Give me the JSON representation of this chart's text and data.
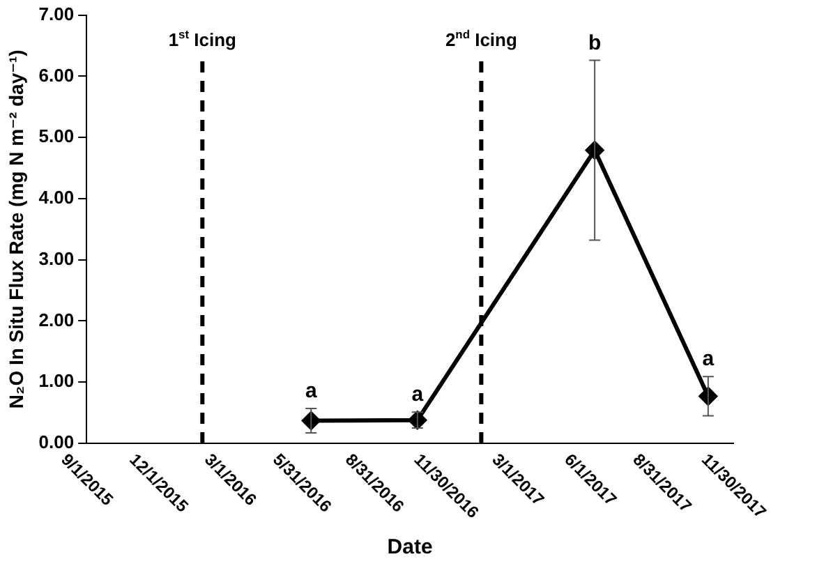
{
  "chart_data": {
    "type": "line",
    "xlabel": "Date",
    "ylabel": "N₂O In Situ Flux Rate (mg N m⁻² day⁻¹)",
    "x": [
      "2016-06-12",
      "2016-10-25",
      "2017-06-07",
      "2017-10-29"
    ],
    "series": [
      {
        "color": "#000000",
        "values": [
          0.37,
          0.38,
          4.79,
          0.77
        ],
        "errors": [
          0.2,
          0.13,
          1.47,
          0.32
        ]
      }
    ],
    "xlim": [
      "2015-09-01",
      "2017-11-30"
    ],
    "xticks": [
      {
        "value": "2015-09-01",
        "label": "9/1/2015"
      },
      {
        "value": "2015-12-01",
        "label": "12/1/2015"
      },
      {
        "value": "2016-03-01",
        "label": "3/1/2016"
      },
      {
        "value": "2016-05-31",
        "label": "5/31/2016"
      },
      {
        "value": "2016-08-31",
        "label": "8/31/2016"
      },
      {
        "value": "2016-11-30",
        "label": "11/30/2016"
      },
      {
        "value": "2017-03-01",
        "label": "3/1/2017"
      },
      {
        "value": "2017-06-01",
        "label": "6/1/2017"
      },
      {
        "value": "2017-08-31",
        "label": "8/31/2017"
      },
      {
        "value": "2017-11-30",
        "label": "11/30/2017"
      }
    ],
    "ylim": [
      0,
      7
    ],
    "yticks": [
      {
        "value": 0,
        "label": "0.00"
      },
      {
        "value": 1,
        "label": "1.00"
      },
      {
        "value": 2,
        "label": "2.00"
      },
      {
        "value": 3,
        "label": "3.00"
      },
      {
        "value": 4,
        "label": "4.00"
      },
      {
        "value": 5,
        "label": "5.00"
      },
      {
        "value": 6,
        "label": "6.00"
      },
      {
        "value": 7,
        "label": "7.00"
      }
    ],
    "ref_lines": [
      {
        "axis": "x",
        "value": "2016-01-26",
        "label": "1$^{st}$ Icing",
        "color": "#000000",
        "line_style": "dashed"
      },
      {
        "axis": "x",
        "value": "2017-01-14",
        "label": "2$^{nd}$ Icing",
        "color": "#000000",
        "line_style": "dashed"
      }
    ],
    "annotations": [
      {
        "text": "a",
        "x": "2016-06-12",
        "y": 0.57
      },
      {
        "text": "a",
        "x": "2016-10-25",
        "y": 0.51
      },
      {
        "text": "b",
        "x": "2017-06-07",
        "y": 6.26
      },
      {
        "text": "a",
        "x": "2017-10-29",
        "y": 1.09
      }
    ],
    "marker": "diamond",
    "line_style": "solid",
    "grid": false,
    "legend": false
  }
}
